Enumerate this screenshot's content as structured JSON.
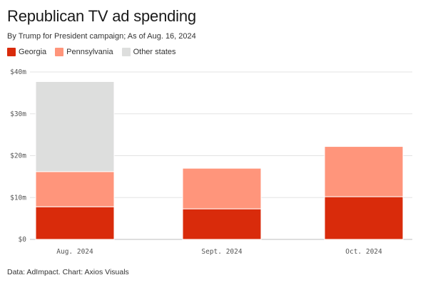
{
  "title": "Republican TV ad spending",
  "subtitle": "By Trump for President campaign; As of Aug. 16, 2024",
  "source": "Data: AdImpact. Chart: Axios Visuals",
  "colors": {
    "georgia": "#d92b0b",
    "pennsylvania": "#ff957b",
    "other": "#dddedd",
    "grid": "#e3e3e3"
  },
  "chart_data": {
    "type": "bar",
    "stacked": true,
    "categories": [
      "Aug. 2024",
      "Sept. 2024",
      "Oct. 2024"
    ],
    "series": [
      {
        "name": "Georgia",
        "values": [
          7.8,
          7.3,
          10.2
        ]
      },
      {
        "name": "Pennsylvania",
        "values": [
          8.4,
          9.7,
          12.0
        ]
      },
      {
        "name": "Other states",
        "values": [
          21.5,
          0,
          0
        ]
      }
    ],
    "ylim": [
      0,
      40
    ],
    "yticks": [
      0,
      10,
      20,
      30,
      40
    ],
    "ytick_labels": [
      "$0",
      "$10m",
      "$20m",
      "$30m",
      "$40m"
    ],
    "grid": true,
    "legend_position": "top-left"
  }
}
